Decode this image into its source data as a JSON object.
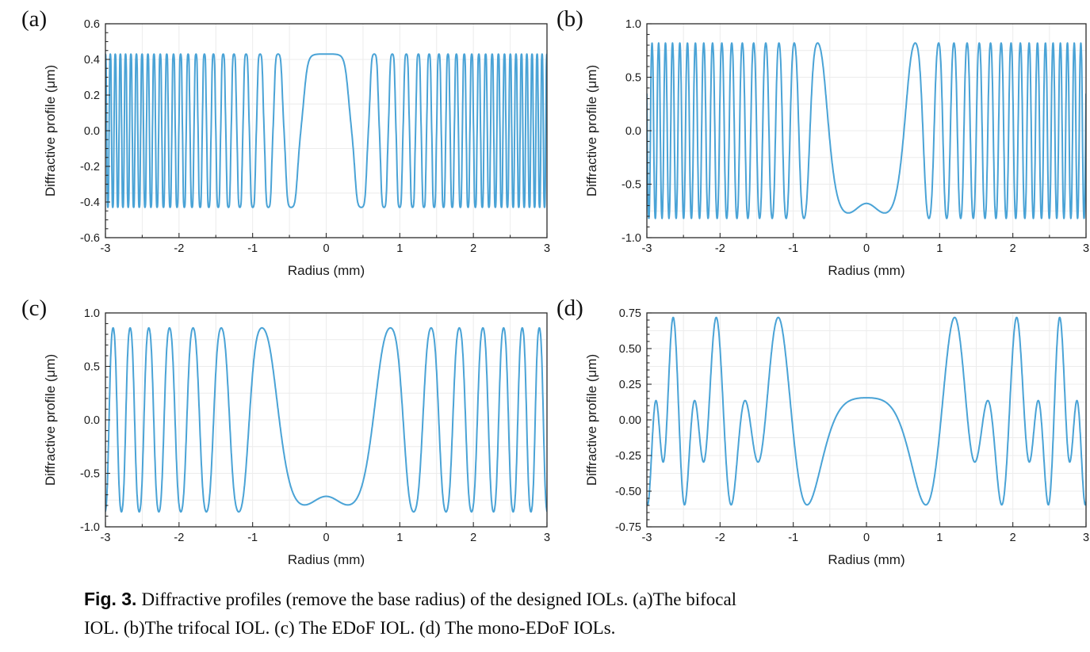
{
  "figure": {
    "caption": {
      "fig_label": "Fig. 3.",
      "line1": "Diffractive profiles (remove the base radius) of the designed IOLs. (a)The bifocal",
      "line2": "IOL. (b)The trifocal IOL. (c) The EDoF IOL. (d) The mono-EDoF IOLs."
    }
  },
  "style": {
    "line_color": "#4aa3d6",
    "axis_color": "#2b2b2b",
    "grid_color": "#ececec",
    "background": "#ffffff",
    "tick_label_color": "#1a1a1a"
  },
  "chart_data": [
    {
      "id": "a",
      "panel_label": "(a)",
      "type": "line",
      "series_name": "Bifocal IOL diffractive profile",
      "xlabel": "Radius (mm)",
      "ylabel": "Diffractive profile (μm)",
      "xlim": [
        -3,
        3
      ],
      "ylim": [
        -0.6,
        0.6
      ],
      "x_ticks": {
        "values": [
          -3,
          -2,
          -1,
          0,
          1,
          2,
          3
        ],
        "labels": [
          "-3",
          "-2",
          "-1",
          "0",
          "1",
          "2",
          "3"
        ]
      },
      "y_ticks": [
        {
          "v": 0.6,
          "t": "0.6"
        },
        {
          "v": 0.4,
          "t": "0.4"
        },
        {
          "v": 0.2,
          "t": "0.2"
        },
        {
          "v": 0.0,
          "t": "0.0"
        },
        {
          "v": -0.2,
          "t": "-0.2"
        },
        {
          "v": -0.4,
          "t": "-0.4"
        },
        {
          "v": -0.6,
          "t": "-0.6"
        }
      ],
      "grid": {
        "x_step": 0.5,
        "y_step": 0.25
      },
      "minor": {
        "x_step": 0.5,
        "y_step": 0.05
      },
      "model": {
        "kind": "zone",
        "A": 0.43,
        "L": 0.1956,
        "s": 0.06,
        "w": 0.35,
        "phase0_pi": 0,
        "k": 2.2,
        "h3": 0.18,
        "bump_h": 0,
        "bump_sigma": 0.2
      },
      "features": {
        "symmetric_about_r0": true,
        "amplitude_um": 0.43,
        "center_value_um": 0.43,
        "first_zero_mm": 0.36,
        "first_min_mm": 0.5,
        "second_peak_mm": 0.65,
        "cycles_0_to_3mm": 23,
        "zone_spacing": "constant in r^2 (Fresnel zones), oscillation density increases with radius"
      }
    },
    {
      "id": "b",
      "panel_label": "(b)",
      "type": "line",
      "series_name": "Trifocal IOL diffractive profile",
      "xlabel": "Radius (mm)",
      "ylabel": "Diffractive profile (μm)",
      "xlim": [
        -3,
        3
      ],
      "ylim": [
        -1.0,
        1.0
      ],
      "x_ticks": {
        "values": [
          -3,
          -2,
          -1,
          0,
          1,
          2,
          3
        ],
        "labels": [
          "-3",
          "-2",
          "-1",
          "0",
          "1",
          "2",
          "3"
        ]
      },
      "y_ticks": [
        {
          "v": 1.0,
          "t": "1.0"
        },
        {
          "v": 0.5,
          "t": "0.5"
        },
        {
          "v": 0.0,
          "t": "0.0"
        },
        {
          "v": -0.5,
          "t": "-0.5"
        },
        {
          "v": -1.0,
          "t": "-1.0"
        }
      ],
      "grid": {
        "x_step": 0.5,
        "y_step": 0.25
      },
      "minor": {
        "x_step": 0.5,
        "y_step": 0.1
      },
      "model": {
        "kind": "zone",
        "A": 0.82,
        "L": 0.26,
        "s": 0.45,
        "w": 0.5,
        "phase0_pi": 1,
        "k": 1.2,
        "h3": 0.05,
        "bump_h": 0.14,
        "bump_sigma": 0.2
      },
      "features": {
        "symmetric_about_r0": true,
        "amplitude_um": 0.82,
        "center_value_um": -0.7,
        "center_floor_um": -0.84,
        "central_flat_low_zone_mm": 0.5,
        "first_peak_mm": 0.67,
        "peaks_1_to_2mm": 5,
        "peaks_2_to_3mm": 10
      }
    },
    {
      "id": "c",
      "panel_label": "(c)",
      "type": "line",
      "series_name": "EDoF IOL diffractive profile",
      "xlabel": "Radius (mm)",
      "ylabel": "Diffractive profile (μm)",
      "xlim": [
        -3,
        3
      ],
      "ylim": [
        -1.0,
        1.0
      ],
      "x_ticks": {
        "values": [
          -3,
          -2,
          -1,
          0,
          1,
          2,
          3
        ],
        "labels": [
          "-3",
          "-2",
          "-1",
          "0",
          "1",
          "2",
          "3"
        ]
      },
      "y_ticks": [
        {
          "v": 1.0,
          "t": "1.0"
        },
        {
          "v": 0.5,
          "t": "0.5"
        },
        {
          "v": 0.0,
          "t": "0.0"
        },
        {
          "v": -0.5,
          "t": "-0.5"
        },
        {
          "v": -1.0,
          "t": "-1.0"
        }
      ],
      "grid": {
        "x_step": 0.5,
        "y_step": 0.25
      },
      "minor": {
        "x_step": 0.5,
        "y_step": 0.1
      },
      "model": {
        "kind": "zone",
        "A": 0.86,
        "L": 0.645,
        "s": 0.25,
        "w": 1.0,
        "phase0_pi": 1,
        "k": 1.2,
        "h3": 0.05,
        "bump_h": 0.145,
        "bump_sigma": 0.26
      },
      "features": {
        "symmetric_about_r0": true,
        "amplitude_um": 0.86,
        "center_value_um": -0.72,
        "center_side_mins_mm": 0.45,
        "peaks_mm_positive_side": [
          0.88,
          1.42,
          1.85,
          2.15,
          2.45,
          2.7,
          2.92
        ]
      }
    },
    {
      "id": "d",
      "panel_label": "(d)",
      "type": "line",
      "series_name": "Mono-EDoF IOL diffractive profile",
      "xlabel": "Radius (mm)",
      "ylabel": "Diffractive profile (μm)",
      "xlim": [
        -3,
        3
      ],
      "ylim": [
        -0.75,
        0.75
      ],
      "x_ticks": {
        "values": [
          -3,
          -2,
          -1,
          0,
          1,
          2,
          3
        ],
        "labels": [
          "-3",
          "-2",
          "-1",
          "0",
          "1",
          "2",
          "3"
        ]
      },
      "y_ticks": [
        {
          "v": 0.75,
          "t": "0.75"
        },
        {
          "v": 0.5,
          "t": "0.50"
        },
        {
          "v": 0.25,
          "t": "0.25"
        },
        {
          "v": 0.0,
          "t": "0.00"
        },
        {
          "v": -0.25,
          "t": "-0.25"
        },
        {
          "v": -0.5,
          "t": "-0.50"
        },
        {
          "v": -0.75,
          "t": "-0.75"
        }
      ],
      "grid": {
        "x_step": 0.5,
        "y_step": 0.125
      },
      "minor": {
        "x_step": 0.5,
        "y_step": 0.05
      },
      "model": {
        "kind": "harm2",
        "a1": 0.33,
        "a2": 0.42,
        "delta": 0.96,
        "P": 2.76,
        "t0": 0.41,
        "bump_h": 0.02,
        "bump_sigma": 0.35
      },
      "features": {
        "symmetric_about_r0": true,
        "center_value_um": 0.15,
        "big_peak_um": 0.57,
        "small_peak_um": 0.16,
        "deep_min_um": -0.57,
        "shallow_min_um": -0.18,
        "big_peaks_mm": [
          1.27,
          2.1,
          2.67
        ],
        "small_peaks_mm": [
          1.63,
          2.35,
          2.9
        ],
        "deep_mins_mm": [
          0.85,
          1.85,
          2.5
        ],
        "shallow_mins_mm": [
          1.5,
          2.25,
          2.8
        ],
        "value_at_edge_3mm": -0.57
      }
    }
  ]
}
